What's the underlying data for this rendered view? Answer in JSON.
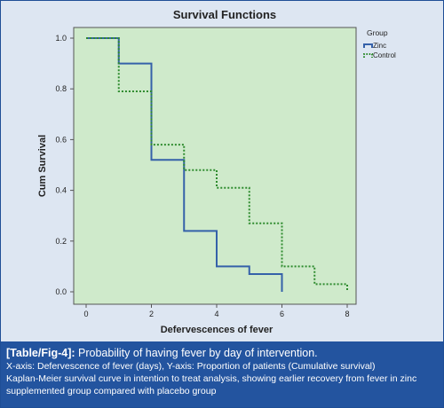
{
  "chart_data": {
    "type": "line",
    "subtype": "step",
    "title": "Survival Functions",
    "xlabel": "Defervescences of fever",
    "ylabel": "Cum Survival",
    "xlim": [
      0,
      8
    ],
    "ylim": [
      0,
      1
    ],
    "xticks": [
      "0",
      "2",
      "4",
      "6",
      "8"
    ],
    "yticks": [
      "0.0",
      "0.2",
      "0.4",
      "0.6",
      "0.8",
      "1.0"
    ],
    "grid": false,
    "legend_title": "Group",
    "legend_position": "top-right",
    "series": [
      {
        "name": "Zinc",
        "color": "#3561a9",
        "style": "solid",
        "x": [
          0,
          1,
          2,
          3,
          4,
          5,
          6
        ],
        "y": [
          1.0,
          0.9,
          0.52,
          0.24,
          0.1,
          0.07,
          0.0
        ]
      },
      {
        "name": "Control",
        "color": "#2e8b2e",
        "style": "dotted",
        "x": [
          0,
          1,
          2,
          3,
          4,
          5,
          6,
          7,
          8
        ],
        "y": [
          1.0,
          0.79,
          0.58,
          0.48,
          0.41,
          0.27,
          0.1,
          0.03,
          0.0
        ]
      }
    ]
  },
  "caption": {
    "label": "[Table/Fig-4]:",
    "title": "Probability of having fever by day of intervention.",
    "axes_note": "X-axis: Defervescence of fever (days), Y-axis: Proportion of patients (Cumulative survival)",
    "description": "Kaplan-Meier survival curve in intention to treat analysis, showing earlier recovery from fever in zinc supplemented group compared with placebo group"
  },
  "colors": {
    "plot_background": "#cfeacb",
    "caption_background": "#23549f"
  }
}
